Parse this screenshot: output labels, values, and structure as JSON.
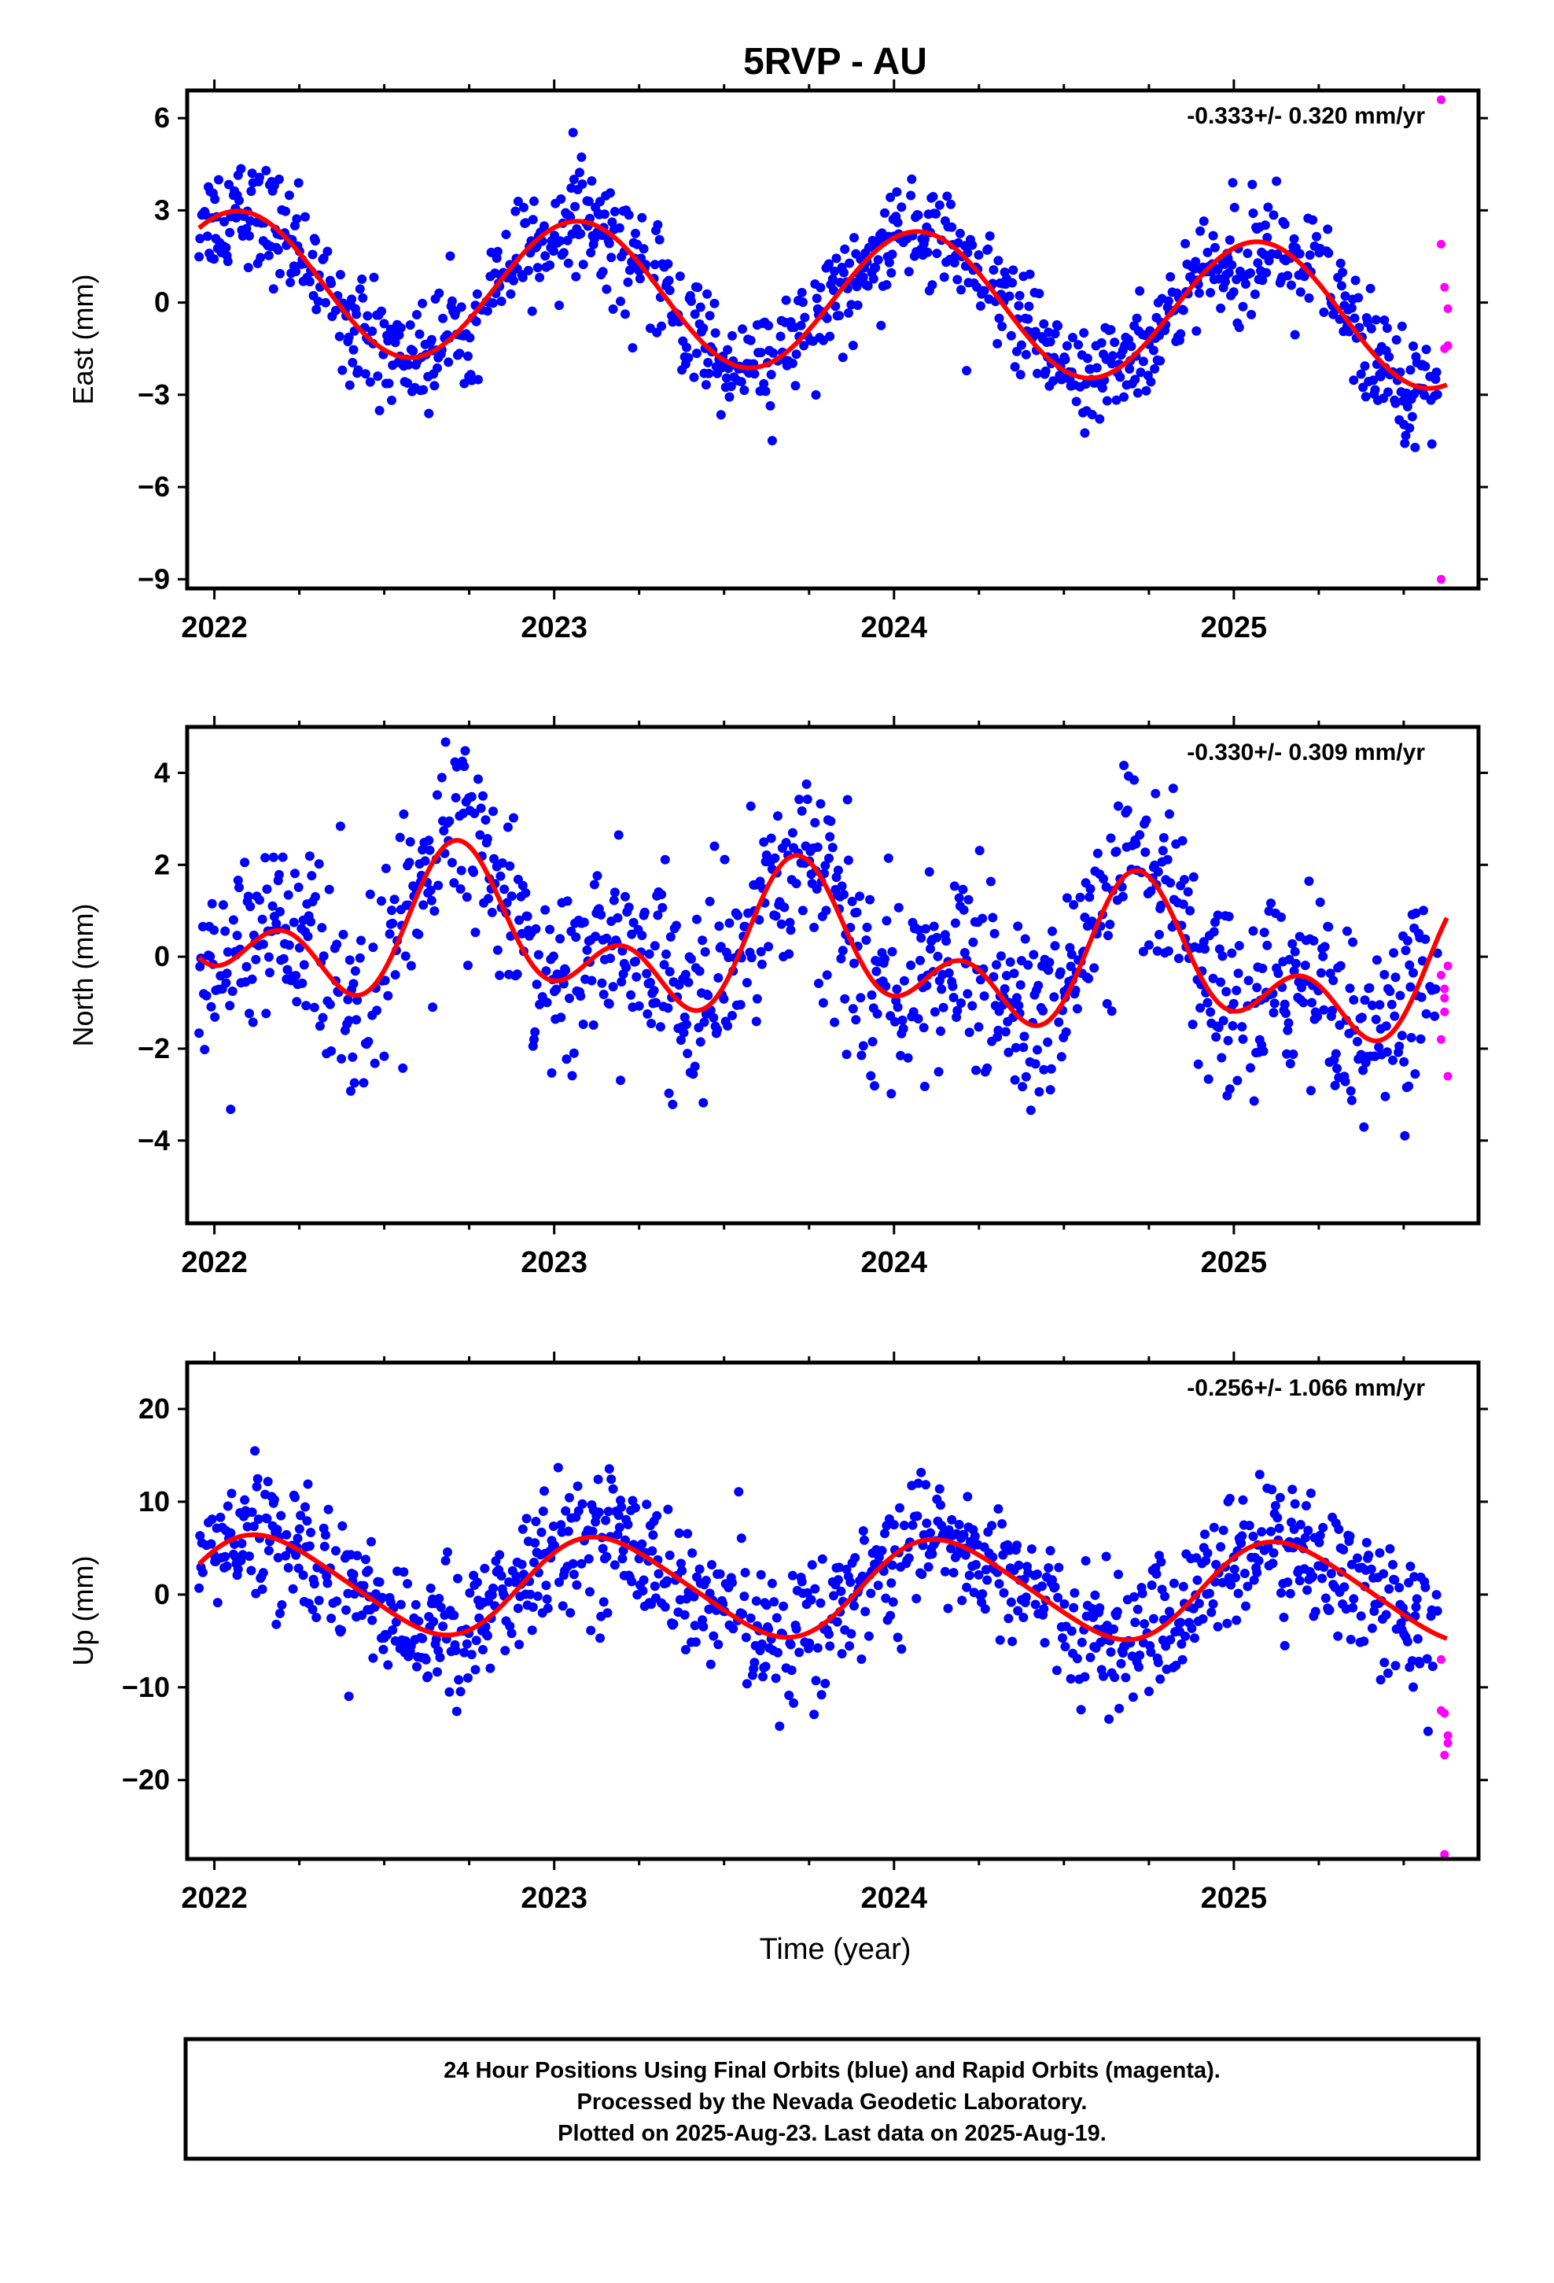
{
  "figure": {
    "title": "5RVP - AU",
    "xlabel": "Time (year)",
    "x_ticks": [
      2022,
      2023,
      2024,
      2025
    ],
    "colors": {
      "final": "#0000ff",
      "rapid": "#ff00ff",
      "model": "#ff0000",
      "frame": "#000000"
    },
    "footer_lines": [
      "24 Hour Positions Using Final Orbits (blue) and Rapid Orbits (magenta).",
      "Processed by the Nevada Geodetic Laboratory.",
      "Plotted on 2025-Aug-23. Last data on 2025-Aug-19."
    ]
  },
  "chart_data": [
    {
      "type": "scatter",
      "id": "east",
      "ylabel": "East (mm)",
      "rate_label": "-0.333+/- 0.320 mm/yr",
      "xlim": [
        2021.92,
        2025.72
      ],
      "ylim": [
        -9.3,
        6.9
      ],
      "y_ticks": [
        -9,
        -6,
        -3,
        0,
        3,
        6
      ],
      "y_tick_labels": [
        "−9",
        "−6",
        "−3",
        "0",
        "3",
        "6"
      ],
      "model": {
        "offset": 0.1,
        "rate": -0.333,
        "a1": 2.3,
        "phi1": 0.45,
        "a2": 0.0,
        "phi2": 0.0,
        "t0": 2023.8
      },
      "scatter_sigma": 0.9,
      "rapid_points": [
        [
          2025.61,
          6.6
        ],
        [
          2025.61,
          1.9
        ],
        [
          2025.62,
          0.5
        ],
        [
          2025.63,
          -0.2
        ],
        [
          2025.62,
          -1.5
        ],
        [
          2025.63,
          -1.4
        ],
        [
          2025.61,
          -9.0
        ]
      ]
    },
    {
      "type": "scatter",
      "id": "north",
      "ylabel": "North (mm)",
      "rate_label": "-0.330+/- 0.309 mm/yr",
      "xlim": [
        2021.92,
        2025.72
      ],
      "ylim": [
        -5.8,
        5.0
      ],
      "y_ticks": [
        -4,
        -2,
        0,
        2,
        4
      ],
      "y_tick_labels": [
        "−4",
        "−2",
        "0",
        "2",
        "4"
      ],
      "model": {
        "offset": 0.1,
        "rate": -0.33,
        "a1": 1.1,
        "phi1": -1.6,
        "a2": 1.0,
        "phi2": 2.6,
        "t0": 2023.8
      },
      "scatter_sigma": 1.0,
      "rapid_points": [
        [
          2025.61,
          -0.4
        ],
        [
          2025.62,
          -0.7
        ],
        [
          2025.62,
          -0.9
        ],
        [
          2025.63,
          -0.2
        ],
        [
          2025.61,
          -1.8
        ],
        [
          2025.62,
          -1.2
        ],
        [
          2025.63,
          -2.6
        ]
      ]
    },
    {
      "type": "scatter",
      "id": "up",
      "ylabel": "Up (mm)",
      "rate_label": "-0.256+/- 1.066 mm/yr",
      "xlim": [
        2021.92,
        2025.72
      ],
      "ylim": [
        -28.5,
        25.0
      ],
      "y_ticks": [
        -20,
        -10,
        0,
        10,
        20
      ],
      "y_tick_labels": [
        "−20",
        "−10",
        "0",
        "10",
        "20"
      ],
      "model": {
        "offset": 0.7,
        "rate": -0.256,
        "a1": 5.2,
        "phi1": 0.95,
        "a2": 0.6,
        "phi2": 0.3,
        "t0": 2023.8
      },
      "scatter_sigma": 3.6,
      "rapid_points": [
        [
          2025.61,
          -7.0
        ],
        [
          2025.62,
          -12.8
        ],
        [
          2025.61,
          -12.5
        ],
        [
          2025.63,
          -15.2
        ],
        [
          2025.63,
          -16.0
        ],
        [
          2025.62,
          -17.3
        ],
        [
          2025.62,
          -28.0
        ]
      ]
    }
  ]
}
